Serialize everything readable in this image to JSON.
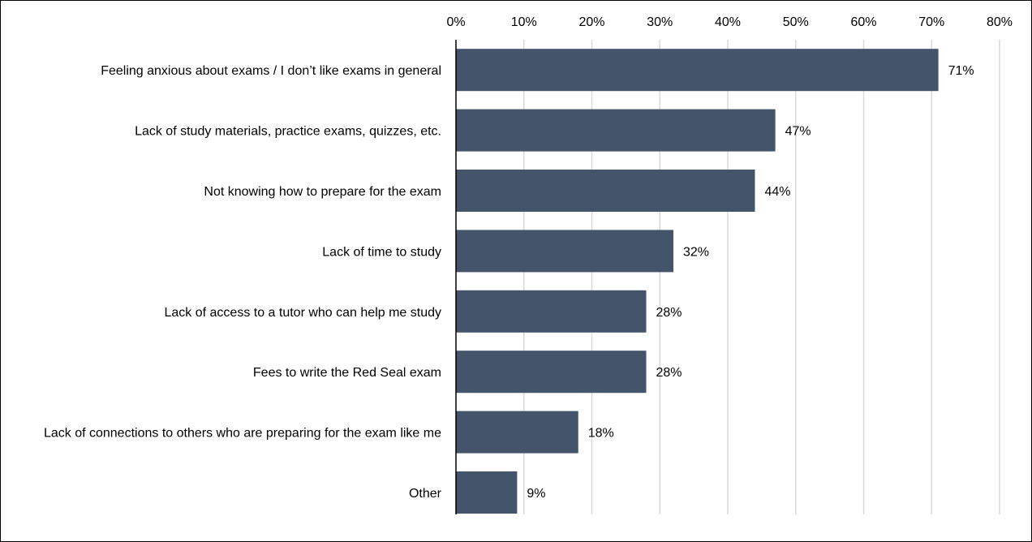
{
  "chart_data": {
    "type": "bar",
    "orientation": "horizontal",
    "title": "",
    "xlabel": "",
    "ylabel": "",
    "categories": [
      "Feeling anxious about exams / I don’t like exams in general",
      "Lack of study materials, practice exams, quizzes, etc.",
      "Not knowing how to prepare for the exam",
      "Lack of time to study",
      "Lack of access to a tutor who can help me study",
      "Fees to write the Red Seal exam",
      "Lack of connections to others who are preparing for the exam like me",
      "Other"
    ],
    "values": [
      71,
      47,
      44,
      32,
      28,
      28,
      18,
      9
    ],
    "value_labels": [
      "71%",
      "47%",
      "44%",
      "32%",
      "28%",
      "28%",
      "18%",
      "9%"
    ],
    "xlim": [
      0,
      80
    ],
    "ticks": [
      0,
      10,
      20,
      30,
      40,
      50,
      60,
      70,
      80
    ],
    "tick_labels": [
      "0%",
      "10%",
      "20%",
      "30%",
      "40%",
      "50%",
      "60%",
      "70%",
      "80%"
    ],
    "axis_position": "top",
    "grid": true,
    "legend": "none",
    "colors": {
      "bar": "#44546A",
      "grid": "#D9D9D9",
      "axis": "#000000"
    }
  }
}
